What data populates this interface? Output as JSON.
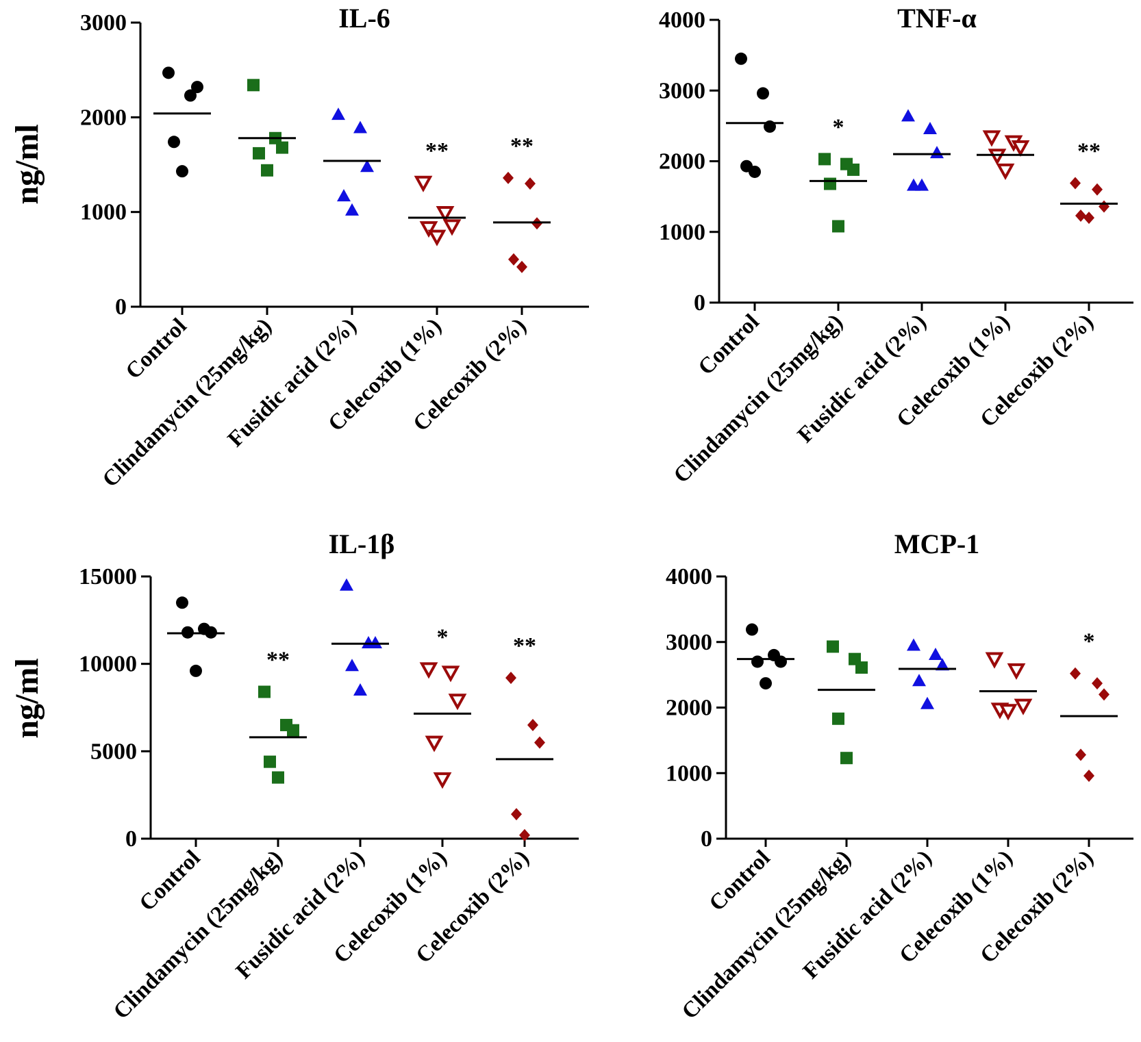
{
  "y_axis_label": "ng/ml",
  "categories": [
    "Control",
    "Clindamycin (25mg/kg)",
    "Fusidic acid (2%)",
    "Celecoxib (1%)",
    "Celecoxib (2%)"
  ],
  "group_markers": [
    "circle",
    "square",
    "triangle-up",
    "triangle-down-open",
    "diamond"
  ],
  "group_colors": [
    "#000000",
    "#1a6e1a",
    "#1010e0",
    "#9b0a0a",
    "#9b0a0a"
  ],
  "chart_data": [
    {
      "type": "scatter",
      "title": "IL-6",
      "ylabel": "ng/ml",
      "ylim": [
        0,
        3000
      ],
      "yticks": [
        "0",
        "1000",
        "2000",
        "3000"
      ],
      "categories": [
        "Control",
        "Clindamycin (25mg/kg)",
        "Fusidic acid (2%)",
        "Celecoxib (1%)",
        "Celecoxib (2%)"
      ],
      "series": [
        {
          "name": "Control",
          "values": [
            2470,
            2230,
            2320,
            1740,
            1430
          ],
          "mean": 2040,
          "significance": ""
        },
        {
          "name": "Clindamycin (25mg/kg)",
          "values": [
            2340,
            1780,
            1680,
            1620,
            1440
          ],
          "mean": 1780,
          "significance": ""
        },
        {
          "name": "Fusidic acid (2%)",
          "values": [
            2030,
            1890,
            1480,
            1170,
            1020
          ],
          "mean": 1540,
          "significance": ""
        },
        {
          "name": "Celecoxib (1%)",
          "values": [
            1310,
            990,
            850,
            830,
            740
          ],
          "mean": 940,
          "significance": "**"
        },
        {
          "name": "Celecoxib (2%)",
          "values": [
            1360,
            1300,
            880,
            500,
            420
          ],
          "mean": 890,
          "significance": "**"
        }
      ]
    },
    {
      "type": "scatter",
      "title": "TNF-α",
      "ylabel": "",
      "ylim": [
        0,
        4000
      ],
      "yticks": [
        "0",
        "1000",
        "2000",
        "3000",
        "4000"
      ],
      "categories": [
        "Control",
        "Clindamycin (25mg/kg)",
        "Fusidic acid (2%)",
        "Celecoxib (1%)",
        "Celecoxib (2%)"
      ],
      "series": [
        {
          "name": "Control",
          "values": [
            3450,
            2960,
            2490,
            1930,
            1850
          ],
          "mean": 2540,
          "significance": ""
        },
        {
          "name": "Clindamycin (25mg/kg)",
          "values": [
            2030,
            1960,
            1880,
            1680,
            1080
          ],
          "mean": 1720,
          "significance": "*"
        },
        {
          "name": "Fusidic acid (2%)",
          "values": [
            2640,
            2460,
            2120,
            1660,
            1660
          ],
          "mean": 2100,
          "significance": ""
        },
        {
          "name": "Celecoxib (1%)",
          "values": [
            2340,
            2270,
            2200,
            2080,
            1870
          ],
          "mean": 2090,
          "significance": ""
        },
        {
          "name": "Celecoxib (2%)",
          "values": [
            1690,
            1600,
            1360,
            1230,
            1200
          ],
          "mean": 1400,
          "significance": "**"
        }
      ]
    },
    {
      "type": "scatter",
      "title": "IL-1β",
      "ylabel": "ng/ml",
      "ylim": [
        0,
        15000
      ],
      "yticks": [
        "0",
        "5000",
        "10000",
        "15000"
      ],
      "categories": [
        "Control",
        "Clindamycin (25mg/kg)",
        "Fusidic acid (2%)",
        "Celecoxib (1%)",
        "Celecoxib (2%)"
      ],
      "series": [
        {
          "name": "Control",
          "values": [
            13500,
            12000,
            11800,
            11800,
            9600
          ],
          "mean": 11750,
          "significance": ""
        },
        {
          "name": "Clindamycin (25mg/kg)",
          "values": [
            8400,
            6500,
            6200,
            4400,
            3500
          ],
          "mean": 5800,
          "significance": "**"
        },
        {
          "name": "Fusidic acid (2%)",
          "values": [
            14500,
            11200,
            11200,
            9900,
            8500
          ],
          "mean": 11150,
          "significance": ""
        },
        {
          "name": "Celecoxib (1%)",
          "values": [
            9700,
            9500,
            7900,
            5500,
            3400
          ],
          "mean": 7150,
          "significance": "*"
        },
        {
          "name": "Celecoxib (2%)",
          "values": [
            9200,
            6500,
            5500,
            1400,
            200
          ],
          "mean": 4550,
          "significance": "**"
        }
      ]
    },
    {
      "type": "scatter",
      "title": "MCP-1",
      "ylabel": "",
      "ylim": [
        0,
        4000
      ],
      "yticks": [
        "0",
        "1000",
        "2000",
        "3000",
        "4000"
      ],
      "categories": [
        "Control",
        "Clindamycin (25mg/kg)",
        "Fusidic acid (2%)",
        "Celecoxib (1%)",
        "Celecoxib (2%)"
      ],
      "series": [
        {
          "name": "Control",
          "values": [
            3190,
            2800,
            2700,
            2700,
            2370
          ],
          "mean": 2740,
          "significance": ""
        },
        {
          "name": "Clindamycin (25mg/kg)",
          "values": [
            2930,
            2740,
            2610,
            1830,
            1230
          ],
          "mean": 2270,
          "significance": ""
        },
        {
          "name": "Fusidic acid (2%)",
          "values": [
            2950,
            2810,
            2650,
            2410,
            2060
          ],
          "mean": 2590,
          "significance": ""
        },
        {
          "name": "Celecoxib (1%)",
          "values": [
            2740,
            2570,
            2030,
            1970,
            1950
          ],
          "mean": 2250,
          "significance": ""
        },
        {
          "name": "Celecoxib (2%)",
          "values": [
            2520,
            2370,
            2200,
            1280,
            960
          ],
          "mean": 1870,
          "significance": "*"
        }
      ]
    }
  ]
}
